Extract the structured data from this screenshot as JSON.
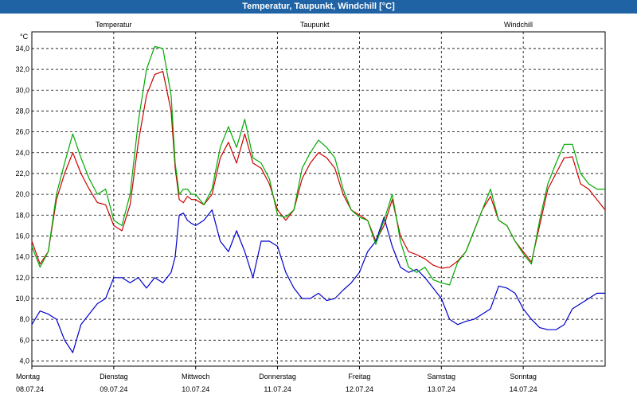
{
  "window": {
    "title": "Temperatur, Taupunkt, Windchill [°C]"
  },
  "colors": {
    "titlebar": "#1f63a5",
    "temperatur": "#cc0000",
    "taupunkt": "#0000cc",
    "windchill": "#00aa00"
  },
  "chart_data": {
    "type": "line",
    "ylabel": "°C",
    "ylim": [
      3.5,
      35.6
    ],
    "yticks": [
      4.0,
      6.0,
      8.0,
      10.0,
      12.0,
      14.0,
      16.0,
      18.0,
      20.0,
      22.0,
      24.0,
      26.0,
      28.0,
      30.0,
      32.0,
      34.0
    ],
    "ytick_labels": [
      "4,0",
      "6,0",
      "8,0",
      "10,0",
      "12,0",
      "14,0",
      "16,0",
      "18,0",
      "20,0",
      "22,0",
      "24,0",
      "26,0",
      "28,0",
      "30,0",
      "32,0",
      "34,0"
    ],
    "grid": true,
    "legend_placement": "top",
    "xlim": [
      0,
      7
    ],
    "x_categories": [
      {
        "day": "Montag",
        "date": "08.07.24"
      },
      {
        "day": "Dienstag",
        "date": "09.07.24"
      },
      {
        "day": "Mittwoch",
        "date": "10.07.24"
      },
      {
        "day": "Donnerstag",
        "date": "11.07.24"
      },
      {
        "day": "Freitag",
        "date": "12.07.24"
      },
      {
        "day": "Samstag",
        "date": "13.07.24"
      },
      {
        "day": "Sonntag",
        "date": "14.07.24"
      }
    ],
    "series": [
      {
        "name": "Temperatur",
        "color": "#cc0000",
        "x": [
          0,
          0.1,
          0.2,
          0.3,
          0.4,
          0.5,
          0.6,
          0.7,
          0.8,
          0.9,
          1.0,
          1.1,
          1.2,
          1.3,
          1.4,
          1.5,
          1.6,
          1.7,
          1.75,
          1.8,
          1.85,
          1.9,
          1.95,
          2.0,
          2.1,
          2.2,
          2.3,
          2.4,
          2.5,
          2.6,
          2.7,
          2.8,
          2.9,
          3.0,
          3.1,
          3.2,
          3.3,
          3.4,
          3.5,
          3.6,
          3.7,
          3.8,
          3.9,
          4.0,
          4.1,
          4.2,
          4.3,
          4.4,
          4.5,
          4.6,
          4.7,
          4.8,
          4.9,
          5.0,
          5.1,
          5.2,
          5.3,
          5.4,
          5.5,
          5.6,
          5.7,
          5.8,
          5.9,
          6.0,
          6.1,
          6.2,
          6.3,
          6.4,
          6.5,
          6.6,
          6.7,
          6.8,
          6.9,
          7.0
        ],
        "y": [
          15.5,
          13.3,
          14.5,
          19.5,
          22.0,
          24.0,
          22.0,
          20.5,
          19.2,
          19.0,
          17.0,
          16.5,
          19.0,
          25.0,
          29.5,
          31.5,
          31.8,
          28.0,
          22.5,
          19.5,
          19.2,
          19.8,
          19.5,
          19.5,
          19.0,
          20.0,
          23.5,
          25.0,
          23.0,
          25.8,
          23.0,
          22.5,
          21.0,
          18.5,
          17.5,
          18.5,
          21.5,
          23.0,
          24.0,
          23.5,
          22.5,
          20.0,
          18.5,
          18.0,
          17.5,
          15.5,
          17.0,
          19.5,
          16.0,
          14.5,
          14.2,
          13.8,
          13.2,
          12.9,
          13.0,
          13.6,
          14.5,
          16.5,
          18.5,
          19.8,
          17.5,
          17.0,
          15.5,
          14.5,
          13.5,
          17.0,
          20.5,
          22.0,
          23.5,
          23.6,
          21.0,
          20.5,
          19.5,
          18.5
        ]
      },
      {
        "name": "Taupunkt",
        "color": "#0000cc",
        "x": [
          0,
          0.1,
          0.2,
          0.3,
          0.4,
          0.5,
          0.6,
          0.7,
          0.8,
          0.9,
          1.0,
          1.1,
          1.2,
          1.3,
          1.4,
          1.5,
          1.6,
          1.7,
          1.75,
          1.8,
          1.85,
          1.9,
          1.95,
          2.0,
          2.1,
          2.2,
          2.3,
          2.4,
          2.5,
          2.6,
          2.7,
          2.8,
          2.9,
          3.0,
          3.1,
          3.2,
          3.3,
          3.4,
          3.5,
          3.6,
          3.7,
          3.8,
          3.9,
          4.0,
          4.1,
          4.2,
          4.3,
          4.4,
          4.5,
          4.6,
          4.7,
          4.8,
          4.9,
          5.0,
          5.1,
          5.2,
          5.3,
          5.4,
          5.5,
          5.6,
          5.7,
          5.8,
          5.9,
          6.0,
          6.1,
          6.2,
          6.3,
          6.4,
          6.5,
          6.6,
          6.7,
          6.8,
          6.9,
          7.0
        ],
        "y": [
          7.5,
          8.8,
          8.5,
          8.0,
          6.0,
          4.8,
          7.5,
          8.5,
          9.5,
          10.0,
          12.0,
          12.0,
          11.5,
          12.0,
          11.0,
          12.0,
          11.5,
          12.5,
          14.0,
          18.0,
          18.2,
          17.5,
          17.2,
          17.0,
          17.5,
          18.5,
          15.5,
          14.5,
          16.5,
          14.5,
          12.0,
          15.5,
          15.5,
          15.0,
          12.5,
          11.0,
          10.0,
          10.0,
          10.5,
          9.8,
          10.0,
          10.8,
          11.5,
          12.5,
          14.5,
          15.5,
          17.8,
          15.0,
          13.0,
          12.5,
          12.8,
          12.0,
          11.0,
          10.0,
          8.0,
          7.5,
          7.8,
          8.0,
          8.5,
          9.0,
          11.2,
          11.0,
          10.5,
          9.0,
          8.0,
          7.2,
          7.0,
          7.0,
          7.5,
          9.0,
          9.5,
          10.0,
          10.5,
          10.5
        ]
      },
      {
        "name": "Windchill",
        "color": "#00aa00",
        "x": [
          0,
          0.1,
          0.2,
          0.3,
          0.4,
          0.5,
          0.6,
          0.7,
          0.8,
          0.9,
          1.0,
          1.1,
          1.2,
          1.3,
          1.4,
          1.5,
          1.6,
          1.7,
          1.75,
          1.8,
          1.85,
          1.9,
          1.95,
          2.0,
          2.1,
          2.2,
          2.3,
          2.4,
          2.5,
          2.6,
          2.7,
          2.8,
          2.9,
          3.0,
          3.1,
          3.2,
          3.3,
          3.4,
          3.5,
          3.6,
          3.7,
          3.8,
          3.9,
          4.0,
          4.1,
          4.2,
          4.3,
          4.4,
          4.5,
          4.6,
          4.7,
          4.8,
          4.9,
          5.0,
          5.1,
          5.2,
          5.3,
          5.4,
          5.5,
          5.6,
          5.7,
          5.8,
          5.9,
          6.0,
          6.1,
          6.2,
          6.3,
          6.4,
          6.5,
          6.6,
          6.7,
          6.8,
          6.9,
          7.0
        ],
        "y": [
          15.0,
          13.0,
          14.5,
          20.0,
          23.0,
          25.8,
          23.5,
          21.5,
          20.0,
          20.5,
          17.5,
          17.0,
          20.0,
          27.0,
          32.0,
          34.2,
          34.0,
          29.5,
          23.0,
          20.0,
          20.5,
          20.5,
          20.0,
          20.0,
          19.0,
          20.5,
          24.5,
          26.5,
          24.5,
          27.2,
          23.5,
          23.0,
          21.5,
          18.0,
          17.8,
          18.5,
          22.5,
          24.0,
          25.2,
          24.5,
          23.5,
          20.5,
          18.5,
          17.8,
          17.5,
          15.2,
          17.5,
          20.0,
          15.5,
          13.0,
          12.5,
          13.0,
          11.8,
          11.5,
          11.3,
          13.5,
          14.5,
          16.5,
          18.5,
          20.5,
          17.5,
          17.0,
          15.5,
          14.3,
          13.3,
          17.5,
          21.0,
          23.0,
          24.8,
          24.8,
          22.0,
          21.0,
          20.5,
          20.5
        ]
      }
    ]
  }
}
